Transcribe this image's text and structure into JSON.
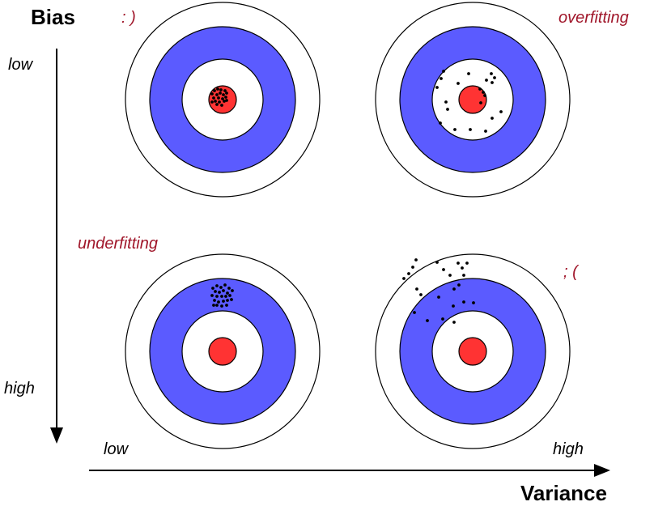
{
  "axes": {
    "bias": {
      "title": "Bias",
      "low": "low",
      "high": "high"
    },
    "variance": {
      "title": "Variance",
      "low": "low",
      "high": "high"
    }
  },
  "annotations": {
    "low_bias_low_variance": ": )",
    "low_bias_high_variance": "overfitting",
    "high_bias_low_variance": "underfitting",
    "high_bias_high_variance": "; ("
  },
  "colors": {
    "ring_blue": "#5b5bff",
    "bullseye_red": "#ff3333",
    "ring_stroke": "#000000",
    "note_text": "#a0162a",
    "dots": "#000000"
  }
}
